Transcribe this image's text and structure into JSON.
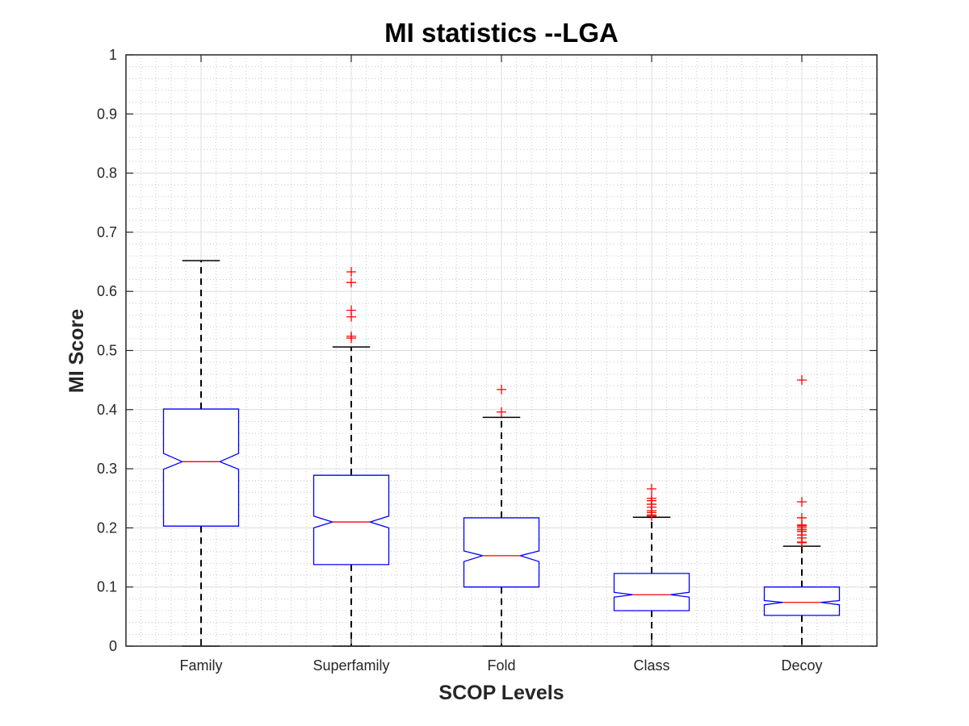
{
  "chart_data": {
    "type": "boxplot",
    "title": "MI statistics --LGA",
    "xlabel": "SCOP Levels",
    "ylabel": "MI Score",
    "ylim": [
      0,
      1
    ],
    "yticks": [
      0,
      0.1,
      0.2,
      0.3,
      0.4,
      0.5,
      0.6,
      0.7,
      0.8,
      0.9,
      1
    ],
    "ytick_labels": [
      "0",
      "0.1",
      "0.2",
      "0.3",
      "0.4",
      "0.5",
      "0.6",
      "0.7",
      "0.8",
      "0.9",
      "1"
    ],
    "grid": true,
    "minor_grid": true,
    "notched": true,
    "categories": [
      "Family",
      "Superfamily",
      "Fold",
      "Class",
      "Decoy"
    ],
    "colors": {
      "box": "#0000ff",
      "median": "#ff0000",
      "whisker": "#000000",
      "outlier": "#ff0000"
    },
    "boxes": [
      {
        "name": "Family",
        "whisker_low": 0.0,
        "q1": 0.203,
        "notch_low": 0.299,
        "median": 0.312,
        "notch_high": 0.326,
        "q3": 0.401,
        "whisker_high": 0.652,
        "outliers": []
      },
      {
        "name": "Superfamily",
        "whisker_low": 0.0,
        "q1": 0.138,
        "notch_low": 0.2,
        "median": 0.21,
        "notch_high": 0.22,
        "q3": 0.289,
        "whisker_high": 0.506,
        "outliers": [
          0.633,
          0.615,
          0.568,
          0.557,
          0.524,
          0.521
        ]
      },
      {
        "name": "Fold",
        "whisker_low": 0.0,
        "q1": 0.1,
        "notch_low": 0.143,
        "median": 0.153,
        "notch_high": 0.161,
        "q3": 0.217,
        "whisker_high": 0.387,
        "outliers": [
          0.434,
          0.396
        ]
      },
      {
        "name": "Class",
        "whisker_low": 0.0,
        "q1": 0.06,
        "notch_low": 0.083,
        "median": 0.087,
        "notch_high": 0.091,
        "q3": 0.123,
        "whisker_high": 0.218,
        "outliers": [
          0.266,
          0.25,
          0.246,
          0.24,
          0.235,
          0.229,
          0.226,
          0.222,
          0.22
        ]
      },
      {
        "name": "Decoy",
        "whisker_low": 0.0,
        "q1": 0.052,
        "notch_low": 0.07,
        "median": 0.074,
        "notch_high": 0.077,
        "q3": 0.1,
        "whisker_high": 0.169,
        "outliers": [
          0.45,
          0.244,
          0.217,
          0.205,
          0.203,
          0.2,
          0.197,
          0.194,
          0.188,
          0.183,
          0.176,
          0.175
        ]
      }
    ]
  }
}
